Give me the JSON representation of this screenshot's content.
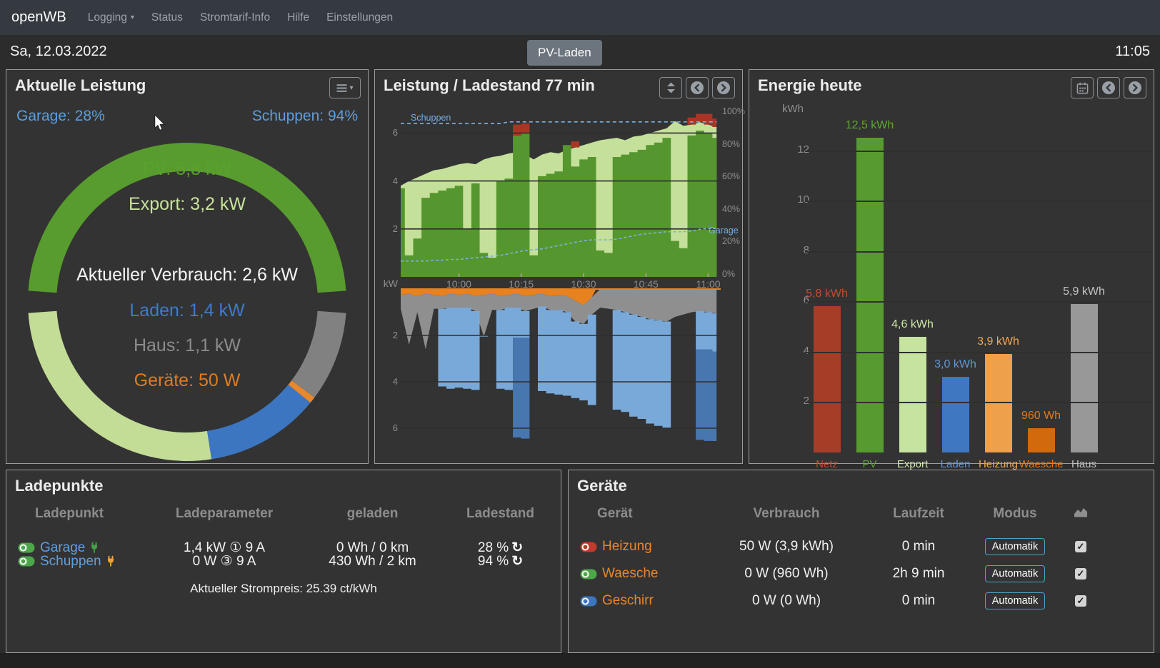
{
  "navbar": {
    "brand": "openWB",
    "items": [
      "Logging",
      "Status",
      "Stromtarif-Info",
      "Hilfe",
      "Einstellungen"
    ]
  },
  "header": {
    "date": "Sa, 12.03.2022",
    "mode_button": "PV-Laden",
    "time": "11:05"
  },
  "aktuelle_leistung": {
    "title": "Aktuelle Leistung",
    "garage_soc": "Garage: 28%",
    "schuppen_soc": "Schuppen: 94%",
    "center_lines": {
      "pv": "PV: 5,8 kW",
      "export": "Export: 3,2 kW",
      "verbrauch": "Aktueller Verbrauch: 2,6 kW",
      "laden": "Laden: 1,4 kW",
      "haus": "Haus: 1,1 kW",
      "geraete": "Geräte: 50 W"
    }
  },
  "leistung_ladestand": {
    "title": "Leistung / Ladestand 77 min"
  },
  "energie_heute": {
    "title": "Energie heute"
  },
  "ladepunkte": {
    "title": "Ladepunkte",
    "headers": [
      "Ladepunkt",
      "Ladeparameter",
      "geladen",
      "Ladestand"
    ],
    "rows": [
      {
        "name": "Garage",
        "toggle_color": "#4ea64b",
        "plug_color": "#43a047",
        "ladeparameter": "1,4 kW ① 9 A",
        "geladen": "0 Wh / 0 km",
        "ladestand": "28 %"
      },
      {
        "name": "Schuppen",
        "toggle_color": "#4ea64b",
        "plug_color": "#f0a13e",
        "ladeparameter": "0 W ③ 9 A",
        "geladen": "430 Wh / 2 km",
        "ladestand": "94 %"
      }
    ],
    "footer": "Aktueller Strompreis: 25.39 ct/kWh"
  },
  "geraete": {
    "title": "Geräte",
    "headers": [
      "Gerät",
      "Verbrauch",
      "Laufzeit",
      "Modus"
    ],
    "rows": [
      {
        "name": "Heizung",
        "toggle_color": "#bf3b2b",
        "verbrauch": "50 W (3,9 kWh)",
        "laufzeit": "0 min",
        "modus": "Automatik",
        "checked": "✓"
      },
      {
        "name": "Waesche",
        "toggle_color": "#4ea64b",
        "verbrauch": "0 W (960 Wh)",
        "laufzeit": "2h 9 min",
        "modus": "Automatik",
        "checked": "✓"
      },
      {
        "name": "Geschirr",
        "toggle_color": "#3d76c0",
        "verbrauch": "0 W (0 Wh)",
        "laufzeit": "0 min",
        "modus": "Automatik",
        "checked": "✓"
      }
    ]
  },
  "chart_data": [
    {
      "type": "pie",
      "title": "Aktuelle Leistung",
      "unit": "kW",
      "production": {
        "label": "PV",
        "value": 5.8,
        "color": "#589b2e"
      },
      "consumption": [
        {
          "label": "Export",
          "value": 3.2,
          "color": "#c3dc96"
        },
        {
          "label": "Laden",
          "value": 1.4,
          "color": "#3d76c0"
        },
        {
          "label": "Geräte",
          "value": 0.05,
          "color": "#e8882c"
        },
        {
          "label": "Haus",
          "value": 1.1,
          "color": "#818181"
        }
      ],
      "verbrauch_kw": 2.6,
      "garage_soc_pct": 28,
      "schuppen_soc_pct": 94
    },
    {
      "type": "area",
      "title": "Leistung / Ladestand 77 min",
      "duration_min": 77,
      "kw_label": "kW",
      "x_ticks": [
        "10:00",
        "10:15",
        "10:30",
        "10:45",
        "11:00"
      ],
      "x_tick_minutes": [
        14,
        29,
        44,
        59,
        74
      ],
      "y_left_ticks": [
        6,
        4,
        2
      ],
      "y_bottom_ticks": [
        2,
        4,
        6
      ],
      "y_right_ticks": [
        [
          "100%",
          100
        ],
        [
          "80%",
          80
        ],
        [
          "60%",
          60
        ],
        [
          "40%",
          40
        ],
        [
          "20%",
          20
        ],
        [
          "0%",
          0
        ]
      ],
      "soc_labels": {
        "schuppen": "Schuppen",
        "garage": "Garage"
      },
      "t": [
        0,
        2,
        4,
        6,
        8,
        10,
        12,
        14,
        16,
        18,
        20,
        22,
        24,
        26,
        28,
        30,
        32,
        34,
        36,
        38,
        40,
        42,
        44,
        46,
        48,
        50,
        52,
        54,
        56,
        58,
        60,
        62,
        64,
        66,
        68,
        70,
        72,
        74,
        76
      ],
      "pv_kw": [
        3.8,
        4.0,
        4.15,
        4.3,
        4.45,
        4.5,
        4.6,
        4.7,
        4.75,
        4.7,
        4.9,
        5.0,
        5.05,
        5.15,
        5.2,
        5.1,
        4.9,
        5.1,
        5.2,
        5.15,
        5.3,
        5.4,
        5.5,
        5.6,
        5.7,
        5.75,
        5.8,
        5.7,
        5.85,
        5.9,
        6.0,
        6.1,
        6.2,
        6.5,
        6.3,
        6.35,
        6.45,
        6.35,
        6.25
      ],
      "direct_kw": [
        3.7,
        0.9,
        1.6,
        3.3,
        3.5,
        3.6,
        3.7,
        3.8,
        2.0,
        3.9,
        1.0,
        0.8,
        4.0,
        4.1,
        5.9,
        6.0,
        0.9,
        4.2,
        4.3,
        4.4,
        5.5,
        4.6,
        4.9,
        5.0,
        1.1,
        1.0,
        5.0,
        5.1,
        5.2,
        5.3,
        5.5,
        5.6,
        5.8,
        1.5,
        1.2,
        5.9,
        6.1,
        6.0,
        5.8
      ],
      "netz_kw": [
        0,
        0,
        0,
        0,
        0,
        0,
        0,
        0,
        0,
        0,
        0,
        0,
        0,
        0,
        0.45,
        0.4,
        0,
        0,
        0,
        0,
        0,
        0.25,
        0,
        0,
        0,
        0,
        0,
        0,
        0,
        0,
        0,
        0,
        0,
        0,
        0,
        0.3,
        0.35,
        0.45,
        0.35
      ],
      "soc_schuppen_pct": [
        92.5,
        92.5,
        92.5,
        92.5,
        92.5,
        92.5,
        92.5,
        92.5,
        92.5,
        92.5,
        92.5,
        92.5,
        92.5,
        93.5,
        93.5,
        93.5,
        93.5,
        93.5,
        93.5,
        93.5,
        93.5,
        93.5,
        93.5,
        93.5,
        93.5,
        93.5,
        93.5,
        93.5,
        93.5,
        93.5,
        93.5,
        93.5,
        93.5,
        93.5,
        93.5,
        93.5,
        93.5,
        93.5,
        93.5
      ],
      "soc_garage_pct": [
        8,
        8,
        8,
        8,
        8.5,
        8.5,
        9,
        9,
        9.5,
        10,
        10.5,
        11,
        11.5,
        12.5,
        13.5,
        14.5,
        15,
        15.5,
        16.5,
        17.5,
        18.5,
        19.5,
        20.5,
        21,
        21,
        21,
        21.5,
        22.5,
        23.5,
        24.5,
        25,
        25.5,
        26,
        26,
        26,
        26.5,
        27.5,
        28,
        28
      ],
      "heizung_kw": [
        0.25,
        0.2,
        0.3,
        0.2,
        0.25,
        0.3,
        0.2,
        0.25,
        0.2,
        0.3,
        0.25,
        0.2,
        0.3,
        0.25,
        0.2,
        0.3,
        0.25,
        0.2,
        0.3,
        0.25,
        0.3,
        0.5,
        0.7,
        0.35,
        0,
        0,
        0,
        0,
        0,
        0,
        0,
        0,
        0,
        0,
        0,
        0,
        0,
        0,
        0
      ],
      "haus_kw": [
        0.6,
        2.2,
        0.7,
        2.4,
        0.6,
        0.55,
        0.6,
        0.55,
        0.6,
        0.65,
        1.8,
        0.7,
        0.6,
        0.55,
        0.6,
        0.65,
        0.6,
        0.55,
        0.6,
        0.65,
        0.7,
        0.9,
        0.8,
        0.75,
        0.8,
        0.85,
        0.9,
        1.0,
        1.1,
        1.2,
        1.3,
        1.35,
        1.4,
        1.2,
        1.1,
        1.0,
        0.95,
        1.0,
        1.05
      ],
      "laden_kw": [
        0,
        0,
        0,
        0,
        0,
        4.2,
        4.3,
        4.25,
        4.3,
        4.35,
        2.0,
        0,
        4.3,
        4.35,
        2.1,
        2.1,
        0,
        4.4,
        4.5,
        4.55,
        4.6,
        4.7,
        4.8,
        5.0,
        0,
        0,
        5.2,
        5.3,
        5.5,
        5.6,
        5.8,
        5.9,
        6.0,
        0,
        0,
        0,
        2.6,
        2.6,
        2.7
      ],
      "laden2_top_kw": [
        0,
        0,
        0,
        0,
        0,
        0,
        0,
        0,
        0,
        0,
        0,
        0,
        0,
        0,
        2.1,
        2.1,
        0,
        0,
        0,
        0,
        0,
        0,
        0,
        0,
        0,
        0,
        0,
        0,
        0,
        0,
        0,
        0,
        0,
        0,
        0,
        0,
        2.6,
        2.6,
        2.7
      ],
      "laden2_bot_kw": [
        0,
        0,
        0,
        0,
        0,
        0,
        0,
        0,
        0,
        0,
        0,
        0,
        0,
        0,
        6.4,
        6.45,
        0,
        0,
        0,
        0,
        0,
        0,
        0,
        0,
        0,
        0,
        0,
        0,
        0,
        0,
        0,
        0,
        0,
        0,
        0,
        0,
        6.5,
        6.55,
        6.6
      ],
      "colors": {
        "pv_light": "#c4e09a",
        "pv_dark": "#55962e",
        "netz": "#ab3524",
        "heizung": "#e8821e",
        "haus": "#8f8f8f",
        "laden": "#79a9d9",
        "laden2": "#4a7cba",
        "soc": "#7fb0e0"
      }
    },
    {
      "type": "bar",
      "title": "Energie heute",
      "ylabel": "kWh",
      "yticks": [
        2,
        4,
        6,
        8,
        10,
        12
      ],
      "ylim": [
        0,
        13.2
      ],
      "categories": [
        "Netz",
        "PV",
        "Export",
        "Laden",
        "Heizung",
        "Waesche",
        "Haus"
      ],
      "values": [
        5.8,
        12.5,
        4.6,
        3.0,
        3.9,
        0.96,
        5.9
      ],
      "value_labels": [
        "5,8 kWh",
        "12,5 kWh",
        "4,6 kWh",
        "3,0 kWh",
        "3,9 kWh",
        "960 Wh",
        "5,9 kWh"
      ],
      "colors": [
        "#a63e27",
        "#579b30",
        "#c6e3a0",
        "#3f77c1",
        "#efa04b",
        "#d2690c",
        "#989898"
      ],
      "label_colors": [
        "#c14b31",
        "#5fa636",
        "#cfe8ab",
        "#6197d8",
        "#f2a854",
        "#e07a1a",
        "#c3c3c3"
      ]
    }
  ]
}
